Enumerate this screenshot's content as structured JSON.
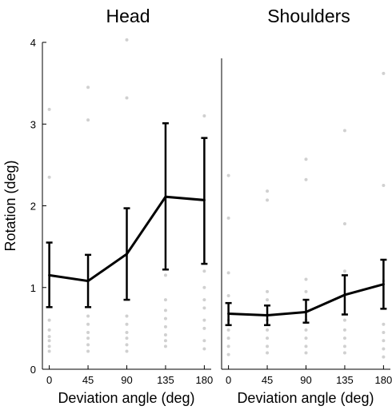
{
  "chart_data": [
    {
      "type": "line",
      "title": "Head",
      "xlabel": "Deviation angle (deg)",
      "ylabel": "Rotation (deg)",
      "x": [
        0,
        45,
        90,
        135,
        180
      ],
      "xticks": [
        "0",
        "45",
        "90",
        "135",
        "180"
      ],
      "yticks": [
        "0",
        "1",
        "2",
        "3",
        "4"
      ],
      "xlim": [
        -8,
        188
      ],
      "ylim": [
        0,
        4
      ],
      "series": [
        {
          "values": [
            1.15,
            1.08,
            1.41,
            2.11,
            2.07
          ],
          "error_low": [
            0.76,
            0.76,
            0.85,
            1.22,
            1.29
          ],
          "error_high": [
            1.55,
            1.4,
            1.97,
            3.01,
            2.83
          ],
          "color": "#000000"
        }
      ],
      "scatter_points": [
        [
          0,
          3.18
        ],
        [
          0,
          2.35
        ],
        [
          0,
          0.6
        ],
        [
          0,
          0.48
        ],
        [
          0,
          0.4
        ],
        [
          0,
          0.35
        ],
        [
          0,
          0.28
        ],
        [
          0,
          0.22
        ],
        [
          45,
          3.45
        ],
        [
          45,
          3.05
        ],
        [
          45,
          0.65
        ],
        [
          45,
          0.55
        ],
        [
          45,
          0.45
        ],
        [
          45,
          0.38
        ],
        [
          45,
          0.3
        ],
        [
          45,
          0.22
        ],
        [
          90,
          4.03
        ],
        [
          90,
          3.32
        ],
        [
          90,
          0.65
        ],
        [
          90,
          0.55
        ],
        [
          90,
          0.45
        ],
        [
          90,
          0.38
        ],
        [
          90,
          0.3
        ],
        [
          90,
          0.22
        ],
        [
          135,
          1.15
        ],
        [
          135,
          0.85
        ],
        [
          135,
          0.72
        ],
        [
          135,
          0.62
        ],
        [
          135,
          0.52
        ],
        [
          135,
          0.42
        ],
        [
          135,
          0.35
        ],
        [
          135,
          0.28
        ],
        [
          180,
          3.1
        ],
        [
          180,
          1.2
        ],
        [
          180,
          1.0
        ],
        [
          180,
          0.85
        ],
        [
          180,
          0.75
        ],
        [
          180,
          0.6
        ],
        [
          180,
          0.5
        ],
        [
          180,
          0.35
        ],
        [
          180,
          0.25
        ]
      ],
      "scatter_color": "#d0d0d0",
      "grid": false
    },
    {
      "type": "line",
      "title": "Shoulders",
      "xlabel": "Deviation angle (deg)",
      "ylabel": "",
      "x": [
        0,
        45,
        90,
        135,
        180
      ],
      "xticks": [
        "0",
        "45",
        "90",
        "135",
        "180"
      ],
      "yticks": [],
      "xlim": [
        -8,
        188
      ],
      "ylim": [
        0,
        4
      ],
      "series": [
        {
          "values": [
            0.68,
            0.66,
            0.7,
            0.91,
            1.04
          ],
          "error_low": [
            0.54,
            0.54,
            0.57,
            0.67,
            0.74
          ],
          "error_high": [
            0.81,
            0.78,
            0.85,
            1.15,
            1.34
          ],
          "color": "#000000"
        }
      ],
      "scatter_points": [
        [
          0,
          2.37
        ],
        [
          0,
          1.85
        ],
        [
          0,
          1.18
        ],
        [
          0,
          0.9
        ],
        [
          0,
          0.6
        ],
        [
          0,
          0.48
        ],
        [
          0,
          0.38
        ],
        [
          0,
          0.28
        ],
        [
          0,
          0.18
        ],
        [
          45,
          2.18
        ],
        [
          45,
          2.07
        ],
        [
          45,
          0.95
        ],
        [
          45,
          0.85
        ],
        [
          45,
          0.6
        ],
        [
          45,
          0.48
        ],
        [
          45,
          0.38
        ],
        [
          45,
          0.28
        ],
        [
          45,
          0.2
        ],
        [
          90,
          2.57
        ],
        [
          90,
          2.32
        ],
        [
          90,
          1.1
        ],
        [
          90,
          0.95
        ],
        [
          90,
          0.6
        ],
        [
          90,
          0.48
        ],
        [
          90,
          0.38
        ],
        [
          90,
          0.28
        ],
        [
          90,
          0.2
        ],
        [
          135,
          2.92
        ],
        [
          135,
          1.78
        ],
        [
          135,
          1.2
        ],
        [
          135,
          0.6
        ],
        [
          135,
          0.48
        ],
        [
          135,
          0.38
        ],
        [
          135,
          0.28
        ],
        [
          135,
          0.2
        ],
        [
          180,
          3.62
        ],
        [
          180,
          2.25
        ],
        [
          180,
          1.08
        ],
        [
          180,
          0.55
        ],
        [
          180,
          0.45
        ],
        [
          180,
          0.35
        ],
        [
          180,
          0.25
        ],
        [
          180,
          0.15
        ]
      ],
      "scatter_color": "#d0d0d0",
      "grid": false
    }
  ]
}
